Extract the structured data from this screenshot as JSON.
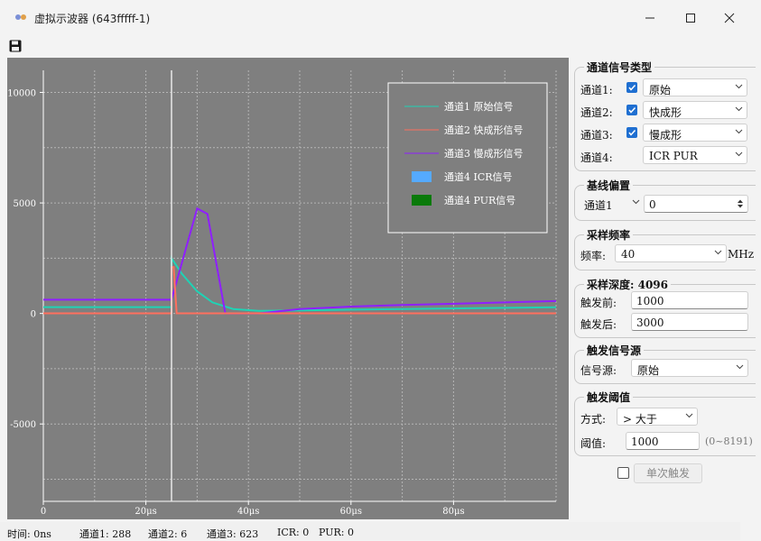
{
  "window": {
    "title": "虚拟示波器 (643fffff-1)",
    "minimize_icon": "minimize-icon",
    "maximize_icon": "maximize-icon",
    "close_icon": "close-icon"
  },
  "toolbar": {
    "save_icon": "save-icon"
  },
  "colors": {
    "ch1": "#1fd3b5",
    "ch2": "#ff6f5e",
    "ch3": "#8f1fff",
    "ch4_icr": "#55aaff",
    "ch4_pur": "#0a7a0a",
    "plot_bg": "#7f7f7f",
    "accent": "#1f6fd1"
  },
  "chart_data": {
    "type": "line",
    "title": "",
    "xlabel": "",
    "ylabel": "",
    "xlim": [
      0,
      100
    ],
    "ylim": [
      -8500,
      11000
    ],
    "x_unit": "μs",
    "x_ticks": [
      0,
      20,
      40,
      60,
      80
    ],
    "x_tick_labels": [
      "0",
      "20μs",
      "40μs",
      "60μs",
      "80μs"
    ],
    "y_ticks": [
      -5000,
      0,
      5000,
      10000
    ],
    "y_tick_labels": [
      "-5000",
      "0",
      "5000",
      "10000"
    ],
    "grid": true,
    "legend_position": "top-right",
    "trigger_marker_x": 25,
    "series": [
      {
        "name": "通道1 原始信号",
        "color": "#1fd3b5",
        "x": [
          0,
          25,
          25,
          27,
          30,
          33,
          37,
          42,
          50,
          70,
          100
        ],
        "y": [
          288,
          288,
          2500,
          1800,
          1000,
          500,
          200,
          120,
          140,
          200,
          280
        ]
      },
      {
        "name": "通道2 快成形信号",
        "color": "#ff6f5e",
        "x": [
          0,
          25,
          25,
          25.4,
          26,
          100
        ],
        "y": [
          6,
          6,
          2100,
          2100,
          6,
          6
        ]
      },
      {
        "name": "通道3 慢成形信号",
        "color": "#8f1fff",
        "x": [
          0,
          25,
          30,
          32,
          35.5,
          42,
          50,
          60,
          70,
          80,
          90,
          100
        ],
        "y": [
          623,
          623,
          4750,
          4500,
          0,
          0,
          200,
          310,
          380,
          440,
          500,
          560
        ]
      },
      {
        "name": "通道4 ICR信号",
        "color": "#55aaff",
        "x": [
          0,
          100
        ],
        "y": [
          0,
          0
        ],
        "legend_symbol": "box"
      },
      {
        "name": "通道4 PUR信号",
        "color": "#0a7a0a",
        "x": [
          0,
          100
        ],
        "y": [
          0,
          0
        ],
        "legend_symbol": "box"
      }
    ]
  },
  "panel": {
    "channel_type": {
      "title": "通道信号类型",
      "rows": [
        {
          "label": "通道1:",
          "checked": true,
          "value": "原始"
        },
        {
          "label": "通道2:",
          "checked": true,
          "value": "快成形"
        },
        {
          "label": "通道3:",
          "checked": true,
          "value": "慢成形"
        },
        {
          "label": "通道4:",
          "checked": false,
          "value": "ICR PUR"
        }
      ]
    },
    "baseline": {
      "title": "基线偏置",
      "channel": "通道1",
      "value": "0"
    },
    "sample_rate": {
      "title": "采样频率",
      "label": "频率:",
      "value": "40",
      "unit": "MHz"
    },
    "sample_depth": {
      "title": "采样深度: 4096",
      "pre_label": "触发前:",
      "pre_value": "1000",
      "post_label": "触发后:",
      "post_value": "3000"
    },
    "trigger_source": {
      "title": "触发信号源",
      "label": "信号源:",
      "value": "原始"
    },
    "trigger_threshold": {
      "title": "触发阈值",
      "mode_label": "方式:",
      "mode_value": "> 大于",
      "value_label": "阈值:",
      "value": "1000",
      "range": "(0~8191)"
    },
    "single_trigger": {
      "label": "单次触发",
      "checked": false
    }
  },
  "status": {
    "time": "时间: 0ns",
    "ch1": "通道1: 288",
    "ch2": "通道2: 6",
    "ch3": "通道3: 623",
    "icr": "ICR: 0",
    "pur": "PUR: 0"
  }
}
